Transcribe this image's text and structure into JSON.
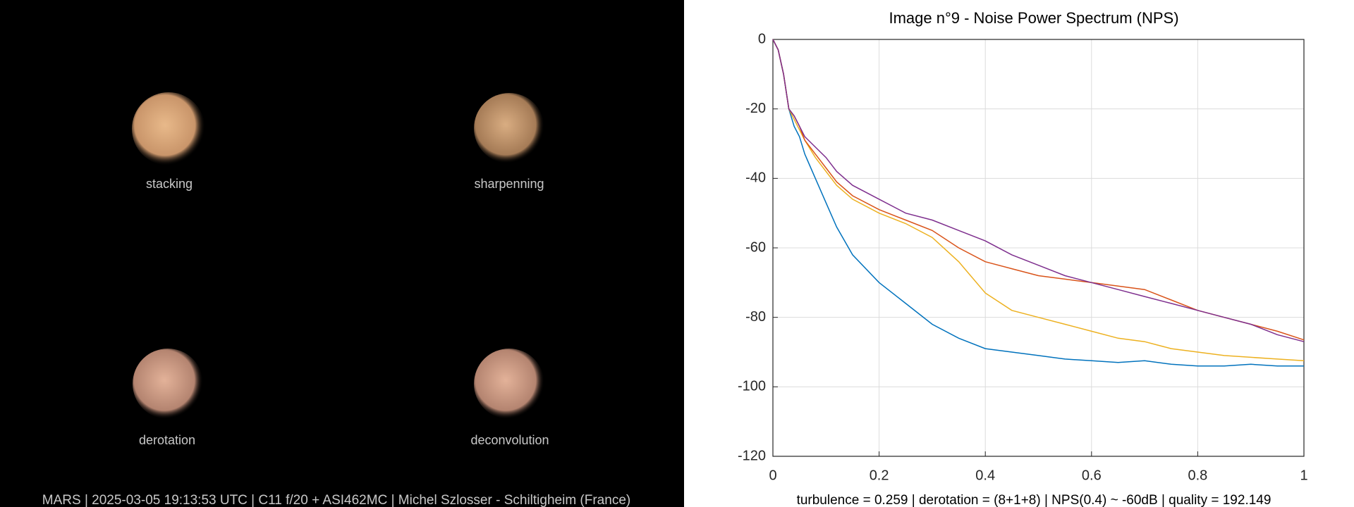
{
  "image_labels": [
    "stacking",
    "sharpenning",
    "derotation",
    "deconvolution"
  ],
  "footer": "MARS | 2025-03-05  19:13:53 UTC | C11 f/20 + ASI462MC | Michel Szlosser - Schiltigheim (France)",
  "chart_data": {
    "type": "line",
    "title": "Image n°9 - Noise Power Spectrum (NPS)",
    "xlabel": "turbulence = 0.259 | derotation = (8+1+8) | NPS(0.4) ~ -60dB |  quality = 192.149",
    "x": [
      0,
      0.01,
      0.02,
      0.03,
      0.04,
      0.05,
      0.06,
      0.08,
      0.1,
      0.12,
      0.15,
      0.2,
      0.25,
      0.3,
      0.35,
      0.4,
      0.45,
      0.5,
      0.55,
      0.6,
      0.65,
      0.7,
      0.75,
      0.8,
      0.85,
      0.9,
      0.95,
      1
    ],
    "series": [
      {
        "color": "#0072bd",
        "values": [
          0,
          -3,
          -10,
          -20,
          -25,
          -28,
          -33,
          -40,
          -47,
          -54,
          -62,
          -70,
          -76,
          -82,
          -86,
          -89,
          -90,
          -91,
          -92,
          -92.5,
          -93,
          -92.5,
          -93.5,
          -94,
          -94,
          -93.5,
          -94,
          -94
        ]
      },
      {
        "color": "#edb120",
        "values": [
          0,
          -3,
          -10,
          -20,
          -23,
          -26,
          -29,
          -34,
          -38,
          -42,
          -46,
          -50,
          -53,
          -57,
          -64,
          -73,
          -78,
          -80,
          -82,
          -84,
          -86,
          -87,
          -89,
          -90,
          -91,
          -91.5,
          -92,
          -92.5
        ]
      },
      {
        "color": "#d95319",
        "values": [
          0,
          -3,
          -10,
          -20,
          -22,
          -25,
          -29,
          -33,
          -37,
          -41,
          -45,
          -49,
          -52,
          -55,
          -60,
          -64,
          -66,
          -68,
          -69,
          -70,
          -71,
          -72,
          -75,
          -78,
          -80,
          -82,
          -84,
          -86.5
        ]
      },
      {
        "color": "#7e2f8e",
        "values": [
          0,
          -3,
          -10,
          -20,
          -22,
          -25,
          -28,
          -31,
          -34,
          -38,
          -42,
          -46,
          -50,
          -52,
          -55,
          -58,
          -62,
          -65,
          -68,
          -70,
          -72,
          -74,
          -76,
          -78,
          -80,
          -82,
          -85,
          -87
        ]
      }
    ],
    "xlim": [
      0,
      1
    ],
    "xticks": [
      0,
      0.2,
      0.4,
      0.6,
      0.8,
      1
    ],
    "ylim": [
      -120,
      0
    ],
    "yticks": [
      -120,
      -100,
      -80,
      -60,
      -40,
      -20,
      0
    ],
    "grid": true
  }
}
